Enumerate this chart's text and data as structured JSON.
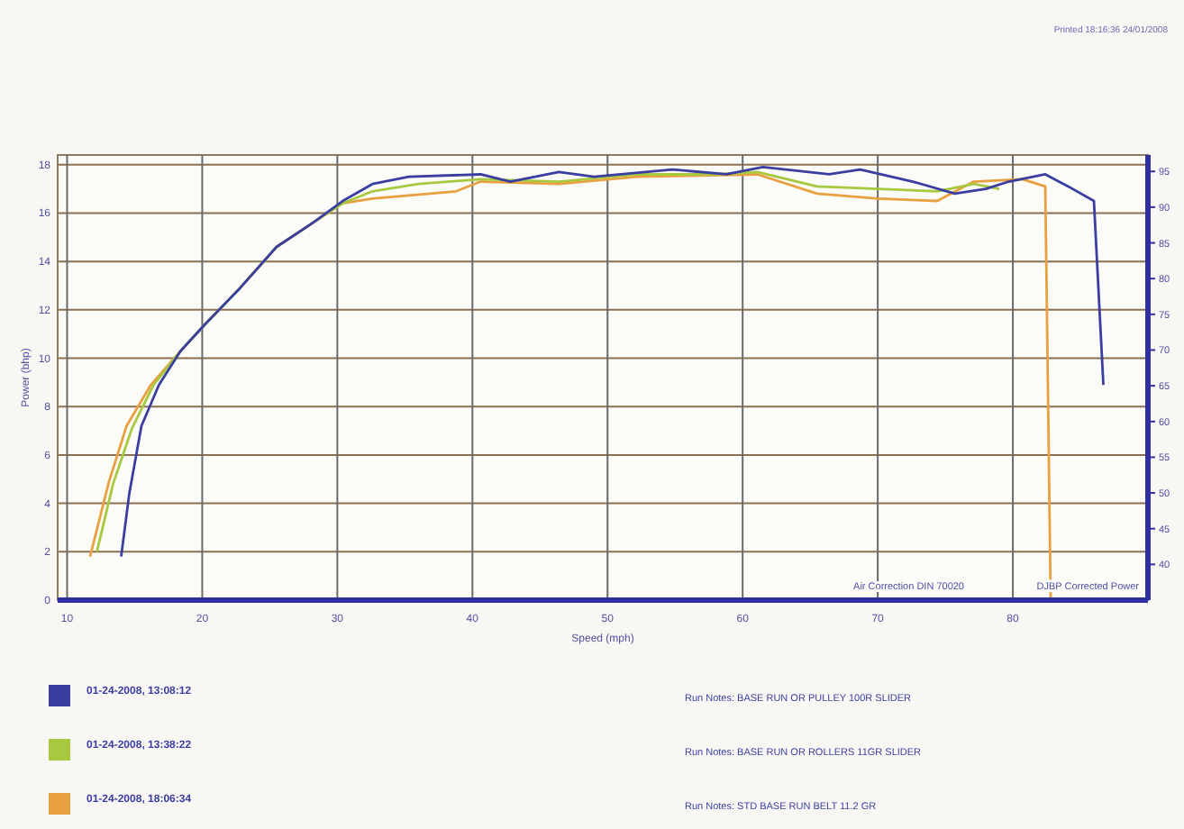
{
  "chart_data": {
    "type": "line",
    "xlabel": "Speed (mph)",
    "ylabel": "Power (bhp)",
    "xlim": [
      9.3,
      90
    ],
    "xticks": [
      10,
      20,
      30,
      40,
      50,
      60,
      70,
      80
    ],
    "ylim": [
      0,
      18.4
    ],
    "yticks": [
      0,
      2,
      4,
      6,
      8,
      10,
      12,
      14,
      16,
      18
    ],
    "y2lim": [
      35,
      97.3
    ],
    "y2ticks": [
      40,
      45,
      50,
      55,
      60,
      65,
      70,
      75,
      80,
      85,
      90,
      95
    ],
    "grid": true,
    "legend": "bottom",
    "marker": "none",
    "line_style": "solid",
    "annotations": [
      "Printed 18:16:36 24/01/2008",
      "Air Correction DIN 70020",
      "DJBP Corrected Power",
      "Run Notes: BASE RUN OR PULLEY 100R SLIDER",
      "Run Notes: BASE RUN OR ROLLERS 11GR SLIDER",
      "Run Notes: STD BASE RUN BELT 11.2 GR"
    ],
    "series": [
      {
        "name": "01-24-2008, 13:08:12",
        "color": "#3a3ea0",
        "x": [
          14,
          14.6,
          15.5,
          16.8,
          18.4,
          20.2,
          22.8,
          25.5,
          28.2,
          30.4,
          32.6,
          35.3,
          40.6,
          42.8,
          46.4,
          49,
          54.8,
          58.8,
          61.5,
          66.4,
          68.7,
          72.6,
          75.7,
          78,
          79.7,
          82.4,
          84.1,
          86,
          86.7
        ],
        "values": [
          1.8,
          4.4,
          7.2,
          8.9,
          10.3,
          11.4,
          12.9,
          14.6,
          15.6,
          16.5,
          17.2,
          17.5,
          17.6,
          17.3,
          17.7,
          17.5,
          17.8,
          17.6,
          17.9,
          17.6,
          17.8,
          17.3,
          16.8,
          17,
          17.3,
          17.6,
          17.1,
          16.5,
          8.9
        ]
      },
      {
        "name": "01-24-2008, 13:38:22",
        "color": "#a8c840",
        "x": [
          12.2,
          13.4,
          14.8,
          16.4,
          18.4,
          20.2,
          22.8,
          25.5,
          28.2,
          30.4,
          32.6,
          36,
          40.6,
          46.4,
          52.2,
          58,
          61.1,
          65.5,
          70,
          74.4,
          77.1,
          79
        ],
        "values": [
          2,
          4.8,
          7.1,
          8.9,
          10.3,
          11.4,
          12.9,
          14.6,
          15.6,
          16.4,
          16.9,
          17.2,
          17.4,
          17.3,
          17.6,
          17.6,
          17.7,
          17.1,
          17,
          16.9,
          17.2,
          17
        ]
      },
      {
        "name": "01-24-2008, 18:06:34",
        "color": "#e8a040",
        "x": [
          11.7,
          13.1,
          14.4,
          16.2,
          18.4,
          20.2,
          22.8,
          25.5,
          28.2,
          30.4,
          32.6,
          38.8,
          40.6,
          46.4,
          52.2,
          61.1,
          65.5,
          70,
          74.4,
          77.1,
          80.7,
          82.4,
          82.8
        ],
        "values": [
          1.8,
          4.9,
          7.2,
          8.9,
          10.3,
          11.4,
          12.9,
          14.6,
          15.6,
          16.4,
          16.6,
          16.9,
          17.3,
          17.2,
          17.5,
          17.6,
          16.8,
          16.6,
          16.5,
          17.3,
          17.4,
          17.1,
          0
        ]
      }
    ]
  }
}
